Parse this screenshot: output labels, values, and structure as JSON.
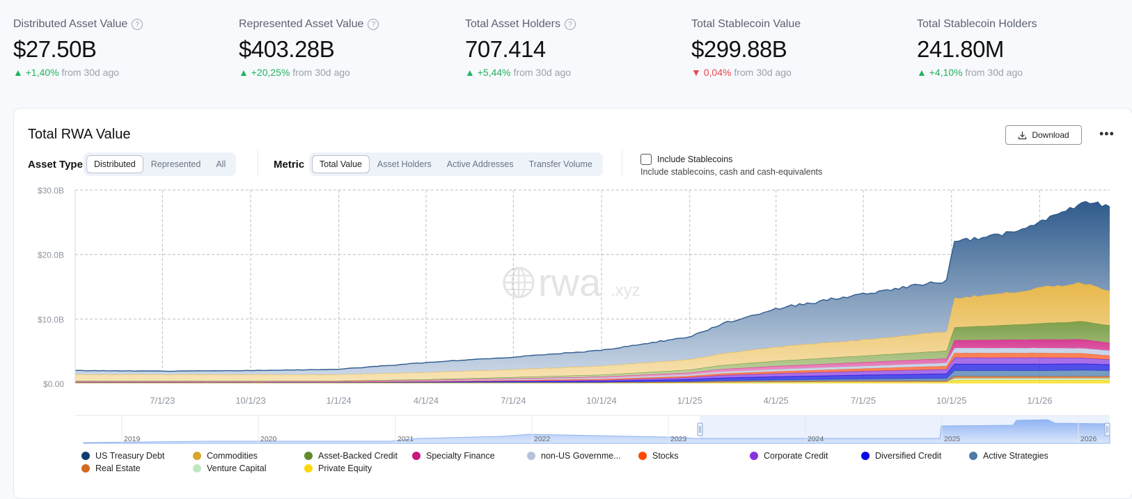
{
  "stats": [
    {
      "label": "Distributed Asset Value",
      "help": true,
      "value": "$27.50B",
      "delta": "+1,40%",
      "direction": "up",
      "suffix": "from 30d ago"
    },
    {
      "label": "Represented Asset Value",
      "help": true,
      "value": "$403.28B",
      "delta": "+20,25%",
      "direction": "up",
      "suffix": "from 30d ago"
    },
    {
      "label": "Total Asset Holders",
      "help": true,
      "value": "707.414",
      "delta": "+5,44%",
      "direction": "up",
      "suffix": "from 30d ago"
    },
    {
      "label": "Total Stablecoin Value",
      "help": false,
      "value": "$299.88B",
      "delta": "0,04%",
      "direction": "down",
      "suffix": "from 30d ago"
    },
    {
      "label": "Total Stablecoin Holders",
      "help": false,
      "value": "241.80M",
      "delta": "+4,10%",
      "direction": "up",
      "suffix": "from 30d ago"
    }
  ],
  "card": {
    "title": "Total RWA Value",
    "download_label": "Download",
    "more_label": "•••",
    "asset_type": {
      "label": "Asset Type",
      "options": [
        "Distributed",
        "Represented",
        "All"
      ],
      "selected": "Distributed"
    },
    "metric": {
      "label": "Metric",
      "options": [
        "Total Value",
        "Asset Holders",
        "Active Addresses",
        "Transfer Volume"
      ],
      "selected": "Total Value"
    },
    "include_stablecoins": {
      "label": "Include Stablecoins",
      "description": "Include stablecoins, cash and cash-equivalents",
      "checked": false
    },
    "watermark": {
      "main": "rwa",
      "suffix": ".xyz"
    }
  },
  "colors": {
    "up": "#22b35e",
    "down": "#e5484d"
  },
  "chart_data": {
    "type": "area",
    "stacked": true,
    "title": "Total RWA Value",
    "xlabel": "",
    "ylabel": "",
    "ylim": [
      0,
      30
    ],
    "y_unit": "B USD",
    "yticks": [
      "$0.00",
      "$10.0B",
      "$20.0B",
      "$30.0B"
    ],
    "ytick_values": [
      0,
      10,
      20,
      30
    ],
    "xlim": [
      "2023-04-01",
      "2026-03-15"
    ],
    "xticks": [
      "7/1/23",
      "10/1/23",
      "1/1/24",
      "4/1/24",
      "7/1/24",
      "10/1/24",
      "1/1/25",
      "4/1/25",
      "7/1/25",
      "10/1/25",
      "1/1/26"
    ],
    "xtick_dates": [
      "2023-07-01",
      "2023-10-01",
      "2024-01-01",
      "2024-04-01",
      "2024-07-01",
      "2024-10-01",
      "2025-01-01",
      "2025-04-01",
      "2025-07-01",
      "2025-10-01",
      "2026-01-01"
    ],
    "grid": true,
    "legend_position": "bottom",
    "x": [
      "2023-04-01",
      "2023-07-01",
      "2023-10-01",
      "2024-01-01",
      "2024-04-01",
      "2024-07-01",
      "2024-10-01",
      "2025-01-01",
      "2025-02-01",
      "2025-04-01",
      "2025-07-01",
      "2025-09-28",
      "2025-10-02",
      "2025-12-01",
      "2026-01-01",
      "2026-02-15",
      "2026-03-15"
    ],
    "series": [
      {
        "name": "Private Equity",
        "color": "#f5d90a",
        "values": [
          0.05,
          0.05,
          0.05,
          0.05,
          0.05,
          0.05,
          0.05,
          0.08,
          0.1,
          0.15,
          0.2,
          0.2,
          0.5,
          0.5,
          0.5,
          0.5,
          0.5
        ]
      },
      {
        "name": "Venture Capital",
        "color": "#bfe8c2",
        "values": [
          0.02,
          0.02,
          0.02,
          0.02,
          0.02,
          0.02,
          0.02,
          0.03,
          0.05,
          0.05,
          0.05,
          0.05,
          0.3,
          0.3,
          0.3,
          0.3,
          0.3
        ]
      },
      {
        "name": "Real Estate",
        "color": "#d2691e",
        "values": [
          0.1,
          0.1,
          0.1,
          0.1,
          0.1,
          0.1,
          0.1,
          0.12,
          0.15,
          0.15,
          0.15,
          0.15,
          0.3,
          0.3,
          0.3,
          0.3,
          0.3
        ]
      },
      {
        "name": "Active Strategies",
        "color": "#4a7aad",
        "values": [
          0.02,
          0.02,
          0.02,
          0.02,
          0.02,
          0.02,
          0.03,
          0.1,
          0.15,
          0.2,
          0.3,
          0.4,
          0.9,
          0.9,
          0.9,
          0.95,
          0.9
        ]
      },
      {
        "name": "Diversified Credit",
        "color": "#1515e0",
        "values": [
          0.02,
          0.02,
          0.02,
          0.02,
          0.05,
          0.1,
          0.15,
          0.3,
          0.4,
          0.5,
          0.6,
          0.7,
          1.0,
          1.0,
          1.0,
          1.0,
          0.9
        ]
      },
      {
        "name": "Corporate Credit",
        "color": "#8a3fe0",
        "values": [
          0.02,
          0.02,
          0.02,
          0.02,
          0.05,
          0.1,
          0.15,
          0.3,
          0.4,
          0.5,
          0.6,
          0.7,
          1.0,
          1.0,
          1.0,
          0.9,
          0.8
        ]
      },
      {
        "name": "Stocks",
        "color": "#ff5a1f",
        "values": [
          0.02,
          0.02,
          0.02,
          0.03,
          0.05,
          0.1,
          0.15,
          0.2,
          0.25,
          0.3,
          0.4,
          0.5,
          0.7,
          0.7,
          0.7,
          0.7,
          0.6
        ]
      },
      {
        "name": "non-US Government Debt",
        "color": "#b8c8e0",
        "values": [
          0.05,
          0.05,
          0.05,
          0.05,
          0.1,
          0.15,
          0.2,
          0.25,
          0.3,
          0.35,
          0.4,
          0.5,
          0.8,
          0.8,
          0.8,
          0.8,
          0.8
        ]
      },
      {
        "name": "Specialty Finance",
        "color": "#d42b8a",
        "values": [
          0.05,
          0.05,
          0.05,
          0.05,
          0.1,
          0.15,
          0.2,
          0.3,
          0.4,
          0.5,
          0.6,
          0.7,
          1.2,
          1.3,
          1.3,
          1.4,
          1.2
        ]
      },
      {
        "name": "Asset-Backed Credit",
        "color": "#6b8f34",
        "values": [
          0.05,
          0.05,
          0.05,
          0.05,
          0.1,
          0.2,
          0.3,
          0.45,
          0.6,
          0.8,
          1.0,
          1.2,
          2.0,
          2.3,
          2.5,
          2.8,
          2.7
        ]
      },
      {
        "name": "Commodities",
        "color": "#e3b44a",
        "values": [
          1.0,
          1.0,
          1.0,
          1.0,
          1.1,
          1.2,
          1.4,
          1.6,
          1.8,
          2.2,
          2.5,
          3.0,
          4.5,
          5.0,
          5.5,
          6.0,
          5.5
        ]
      },
      {
        "name": "US Treasury Debt",
        "color": "#2d5a8e",
        "values": [
          0.6,
          0.5,
          0.6,
          0.8,
          1.5,
          1.9,
          2.4,
          3.5,
          4.5,
          5.9,
          7.1,
          7.9,
          8.9,
          9.2,
          10.1,
          12.4,
          13.2
        ]
      }
    ],
    "navigator": {
      "year_labels": [
        "2019",
        "2020",
        "2021",
        "2022",
        "2023",
        "2024",
        "2025",
        "2026"
      ],
      "selected_range": [
        "2023-04-01",
        "2026-03-15"
      ]
    }
  },
  "legend": [
    {
      "name": "US Treasury Debt",
      "color": "#0f3d6e"
    },
    {
      "name": "Commodities",
      "color": "#d9a52b"
    },
    {
      "name": "Asset-Backed Credit",
      "color": "#5f8b2c"
    },
    {
      "name": "Specialty Finance",
      "color": "#c9187f"
    },
    {
      "name": "non-US Governme...",
      "color": "#b3c3d9"
    },
    {
      "name": "Stocks",
      "color": "#ff4a0a"
    },
    {
      "name": "Corporate Credit",
      "color": "#8a32e0"
    },
    {
      "name": "Diversified Credit",
      "color": "#0a0ae0"
    },
    {
      "name": "Active Strategies",
      "color": "#4d7aab"
    },
    {
      "name": "Real Estate",
      "color": "#d2691e"
    },
    {
      "name": "Venture Capital",
      "color": "#bfe8c2"
    },
    {
      "name": "Private Equity",
      "color": "#fcd80a"
    }
  ]
}
